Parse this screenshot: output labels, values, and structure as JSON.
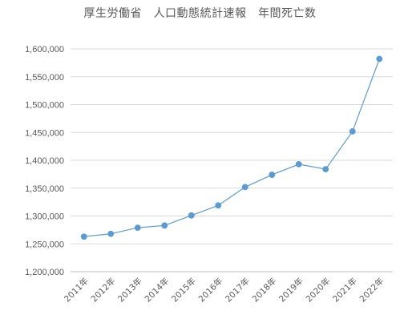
{
  "chart_data": {
    "type": "line",
    "title": "厚生労働省　人口動態統計速報　年間死亡数",
    "xlabel": "",
    "ylabel": "",
    "categories": [
      "2011年",
      "2012年",
      "2013年",
      "2014年",
      "2015年",
      "2016年",
      "2017年",
      "2018年",
      "2019年",
      "2020年",
      "2021年",
      "2022年"
    ],
    "series": [
      {
        "values": [
          1263000,
          1268000,
          1279000,
          1283000,
          1301000,
          1319000,
          1352000,
          1374000,
          1393000,
          1384000,
          1452000,
          1582000
        ]
      }
    ],
    "ylim": [
      1200000,
      1600000
    ],
    "yticks": [
      1200000,
      1250000,
      1300000,
      1350000,
      1400000,
      1450000,
      1500000,
      1550000,
      1600000
    ],
    "ytick_labels": [
      "1,200,000",
      "1,250,000",
      "1,300,000",
      "1,350,000",
      "1,400,000",
      "1,450,000",
      "1,500,000",
      "1,550,000",
      "1,600,000"
    ],
    "grid": true,
    "legend": "none",
    "colors": {
      "series": "#5b9bd5",
      "grid": "#d9d9d9",
      "text": "#595959"
    }
  }
}
